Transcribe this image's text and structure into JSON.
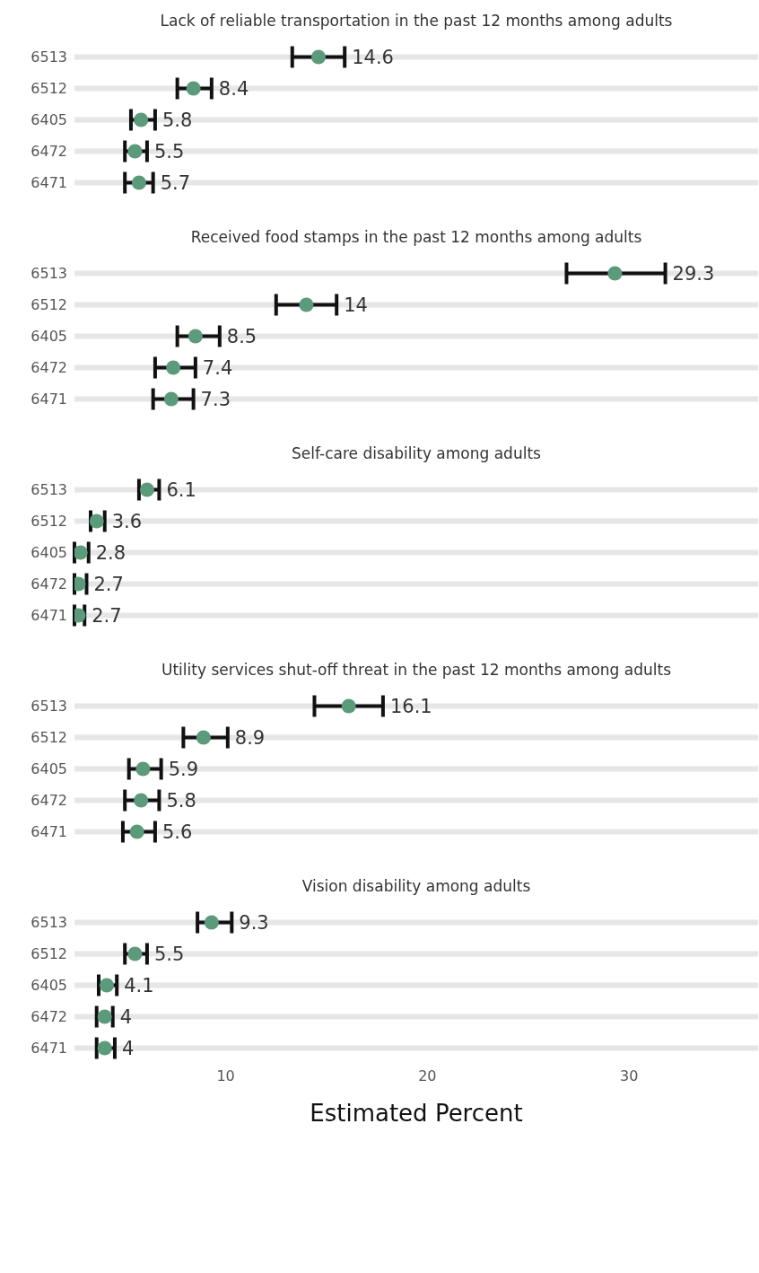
{
  "chart_data": [
    {
      "type": "scatter",
      "orientation": "horizontal",
      "title": "Lack of reliable transportation in the past 12 months among adults",
      "categories": [
        "6513",
        "6512",
        "6405",
        "6472",
        "6471"
      ],
      "values": [
        14.6,
        8.4,
        5.8,
        5.5,
        5.7
      ],
      "errors": [
        [
          13.3,
          15.9
        ],
        [
          7.6,
          9.3
        ],
        [
          5.3,
          6.5
        ],
        [
          5.0,
          6.1
        ],
        [
          5.0,
          6.4
        ]
      ],
      "color": "#5b9a7b",
      "xlim": [
        2.5,
        36.4
      ],
      "xticks": [
        10,
        20,
        30
      ],
      "tick_labels": "y",
      "grid": "y",
      "marker": "circle",
      "data_labels": true
    },
    {
      "type": "scatter",
      "orientation": "horizontal",
      "title": "Received food stamps in the past 12 months among adults",
      "categories": [
        "6513",
        "6512",
        "6405",
        "6472",
        "6471"
      ],
      "values": [
        29.3,
        14,
        8.5,
        7.4,
        7.3
      ],
      "errors": [
        [
          26.9,
          31.8
        ],
        [
          12.5,
          15.5
        ],
        [
          7.6,
          9.7
        ],
        [
          6.5,
          8.5
        ],
        [
          6.4,
          8.4
        ]
      ],
      "color": "#5b9a7b",
      "xlim": [
        2.5,
        36.4
      ],
      "xticks": [
        10,
        20,
        30
      ],
      "tick_labels": "y",
      "grid": "y",
      "marker": "circle",
      "data_labels": true
    },
    {
      "type": "scatter",
      "orientation": "horizontal",
      "title": "Self-care disability among adults",
      "categories": [
        "6513",
        "6512",
        "6405",
        "6472",
        "6471"
      ],
      "values": [
        6.1,
        3.6,
        2.8,
        2.7,
        2.7
      ],
      "errors": [
        [
          5.7,
          6.7
        ],
        [
          3.3,
          4.0
        ],
        [
          2.5,
          3.2
        ],
        [
          2.5,
          3.1
        ],
        [
          2.5,
          3.0
        ]
      ],
      "color": "#5b9a7b",
      "xlim": [
        2.5,
        36.4
      ],
      "xticks": [
        10,
        20,
        30
      ],
      "tick_labels": "y",
      "grid": "y",
      "marker": "circle",
      "data_labels": true
    },
    {
      "type": "scatter",
      "orientation": "horizontal",
      "title": "Utility services shut-off threat in the past 12 months among adults",
      "categories": [
        "6513",
        "6512",
        "6405",
        "6472",
        "6471"
      ],
      "values": [
        16.1,
        8.9,
        5.9,
        5.8,
        5.6
      ],
      "errors": [
        [
          14.4,
          17.8
        ],
        [
          7.9,
          10.1
        ],
        [
          5.2,
          6.8
        ],
        [
          5.0,
          6.7
        ],
        [
          4.9,
          6.5
        ]
      ],
      "color": "#5b9a7b",
      "xlim": [
        2.5,
        36.4
      ],
      "xticks": [
        10,
        20,
        30
      ],
      "tick_labels": "y",
      "grid": "y",
      "marker": "circle",
      "data_labels": true
    },
    {
      "type": "scatter",
      "orientation": "horizontal",
      "title": "Vision disability among adults",
      "xlabel": "Estimated Percent",
      "categories": [
        "6513",
        "6512",
        "6405",
        "6472",
        "6471"
      ],
      "values": [
        9.3,
        5.5,
        4.1,
        4,
        4
      ],
      "errors": [
        [
          8.6,
          10.3
        ],
        [
          5.0,
          6.1
        ],
        [
          3.7,
          4.6
        ],
        [
          3.6,
          4.4
        ],
        [
          3.6,
          4.5
        ]
      ],
      "color": "#5b9a7b",
      "xlim": [
        2.5,
        36.4
      ],
      "xticks": [
        10,
        20,
        30
      ],
      "grid": "y",
      "marker": "circle",
      "data_labels": true
    }
  ]
}
